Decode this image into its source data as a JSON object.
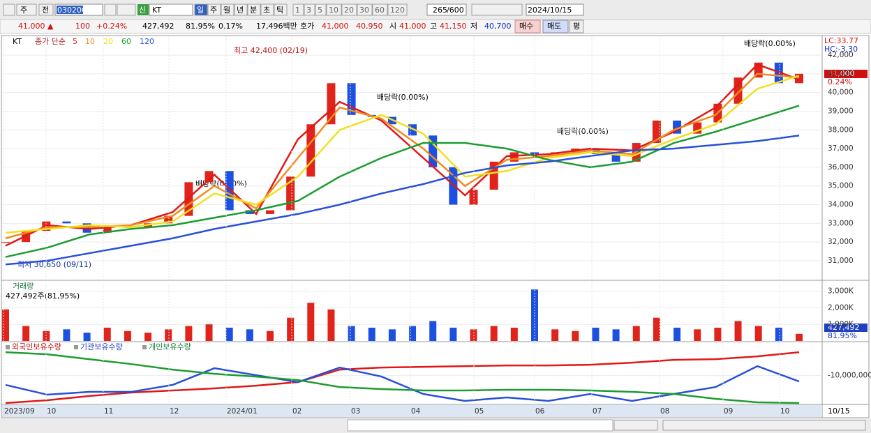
{
  "toolbar": {
    "period": "주",
    "prev": "전",
    "code": "030200",
    "name": "KT",
    "badge": "신",
    "intervals": [
      "일",
      "주",
      "월",
      "년",
      "분",
      "초",
      "틱"
    ],
    "steps": [
      "1",
      "3",
      "5",
      "10",
      "20",
      "30",
      "60",
      "120"
    ],
    "count": "265",
    "max": "/600",
    "date": "2024/10/15"
  },
  "quote": {
    "price": "41,000 ▲",
    "change": "100",
    "rate": "+0.24%",
    "volume": "427,492",
    "vol_ratio": "81.95%",
    "turnover": "0.17%",
    "amount": "17,496백만",
    "ask_label": "호가",
    "ask": "41,000",
    "bid": "40,950",
    "open_label": "시",
    "open": "41,000",
    "high_label": "고",
    "high": "41,150",
    "low_label": "저",
    "low": "40,700",
    "buy": "매수",
    "sell": "매도",
    "avg": "평"
  },
  "price_chart": {
    "type": "candlestick",
    "legend_name": "KT",
    "legend_label": "종가 단순",
    "closes": [
      32000,
      32600,
      33100,
      33000,
      32500,
      32800,
      32800,
      33000,
      33400,
      35200,
      35800,
      33700,
      33500,
      33700,
      35500,
      38300,
      40500,
      38800,
      38700,
      38300,
      37700,
      36000,
      34000,
      34800,
      36300,
      36800,
      36700,
      36800,
      37000,
      36700,
      36300,
      37300,
      38500,
      37800,
      38400,
      39400,
      40800,
      41600,
      40500,
      41000
    ],
    "ma": [
      {
        "name": "5",
        "color": "#e01818",
        "values": [
          31800,
          32900,
          32700,
          32900,
          33600,
          35600,
          33500,
          37500,
          39500,
          38500,
          36500,
          34500,
          36600,
          36700,
          37000,
          36900,
          37900,
          39200,
          41500,
          40700
        ]
      },
      {
        "name": "10",
        "color": "#f08c1c",
        "values": [
          32200,
          32800,
          32800,
          32900,
          33400,
          35000,
          33800,
          36500,
          39200,
          38600,
          37000,
          35000,
          36400,
          36600,
          36900,
          36700,
          38000,
          38800,
          41000,
          40800
        ]
      },
      {
        "name": "20",
        "color": "#f0e020",
        "values": [
          32500,
          32700,
          32900,
          32800,
          33100,
          34600,
          34000,
          35500,
          38000,
          38800,
          37800,
          35500,
          35800,
          36500,
          36800,
          36600,
          37500,
          38300,
          40200,
          40900
        ]
      },
      {
        "name": "60",
        "color": "#1c9c30",
        "values": [
          31200,
          31700,
          32400,
          32700,
          32900,
          33300,
          33700,
          34200,
          35500,
          36500,
          37300,
          37300,
          37000,
          36400,
          36000,
          36300,
          37300,
          37900,
          38600,
          39300
        ]
      },
      {
        "name": "120",
        "color": "#2850d8",
        "values": [
          30800,
          31000,
          31400,
          31800,
          32200,
          32700,
          33100,
          33500,
          34000,
          34600,
          35100,
          35700,
          36100,
          36300,
          36600,
          36900,
          37000,
          37200,
          37400,
          37700
        ]
      }
    ],
    "ylim": [
      29990,
      43010
    ],
    "yticks": [
      {
        "value": 31000,
        "label": "31,000"
      },
      {
        "value": 32000,
        "label": "32,000"
      },
      {
        "value": 33000,
        "label": "33,000"
      },
      {
        "value": 34000,
        "label": "34,000"
      },
      {
        "value": 35000,
        "label": "35,000"
      },
      {
        "value": 36000,
        "label": "36,000"
      },
      {
        "value": 37000,
        "label": "37,000"
      },
      {
        "value": 38000,
        "label": "38,000"
      },
      {
        "value": 39000,
        "label": "39,000"
      },
      {
        "value": 40000,
        "label": "40,000"
      },
      {
        "value": 41000,
        "label": "41,000"
      },
      {
        "value": 42000,
        "label": "42,000"
      }
    ],
    "annotations": {
      "high": "최고 42,400 (02/19)",
      "low": "최저 30,650 (09/11)",
      "dividend": [
        "배당락(0.00%)",
        "배당락(0.00%)",
        "배당락(0.00%)",
        "배당락(0.00%)"
      ]
    },
    "lc": "LC:33.77",
    "hc": "HC:-3.30",
    "last_price": "41,000",
    "last_rate": "0.24%"
  },
  "volume_chart": {
    "type": "bar",
    "title": "거래량",
    "summary": "427,492주(81,95%)",
    "values": [
      1900000,
      900000,
      600000,
      700000,
      500000,
      800000,
      600000,
      500000,
      700000,
      900000,
      1000000,
      800000,
      700000,
      600000,
      1400000,
      2300000,
      1900000,
      900000,
      800000,
      700000,
      900000,
      1200000,
      800000,
      700000,
      900000,
      800000,
      3100000,
      700000,
      600000,
      800000,
      700000,
      900000,
      1400000,
      800000,
      700000,
      800000,
      1200000,
      900000,
      800000,
      427492
    ],
    "ylim": [
      0,
      3570000
    ],
    "yticks": [
      {
        "value": 1000000,
        "label": "1,000K"
      },
      {
        "value": 2000000,
        "label": "2,000K"
      },
      {
        "value": 3000000,
        "label": "3,000K"
      }
    ],
    "last_label": "427,492",
    "last_ratio": "81.95%"
  },
  "holding_chart": {
    "type": "line",
    "series": [
      {
        "name": "외국인보유수량",
        "color": "#e01818",
        "values": [
          -15710000,
          -15130000,
          -14270000,
          -13540000,
          -13110000,
          -12670000,
          -12100000,
          -11370000,
          -8770000,
          -8340000,
          -8190000,
          -8050000,
          -7900000,
          -7900000,
          -7760000,
          -7330000,
          -6750000,
          -6600000,
          -6020000,
          -5160000
        ]
      },
      {
        "name": "기관보유수량",
        "color": "#2850d8",
        "values": [
          -11950000,
          -13980000,
          -13400000,
          -13400000,
          -11950000,
          -8480000,
          -9930000,
          -11370000,
          -8340000,
          -10220000,
          -13830000,
          -15280000,
          -14550000,
          -15280000,
          -13830000,
          -15280000,
          -13830000,
          -12390000,
          -8050000,
          -11230000
        ]
      },
      {
        "name": "개인보유수량",
        "color": "#1c9c30",
        "values": [
          -5160000,
          -5590000,
          -6600000,
          -7610000,
          -8770000,
          -9640000,
          -10220000,
          -10940000,
          -12390000,
          -12820000,
          -13110000,
          -13110000,
          -12960000,
          -12960000,
          -13110000,
          -13400000,
          -13830000,
          -14840000,
          -15570000,
          -15710000
        ]
      }
    ],
    "ylim": [
      -16000000,
      -3400000
    ],
    "yticks": [
      {
        "value": -10000000,
        "label": "-10,000,000"
      }
    ]
  },
  "x_axis": {
    "labels": [
      "2023/09",
      "10",
      "11",
      "12",
      "2024/01",
      "02",
      "03",
      "04",
      "05",
      "06",
      "07",
      "08",
      "09",
      "10"
    ],
    "end": "10/15"
  }
}
